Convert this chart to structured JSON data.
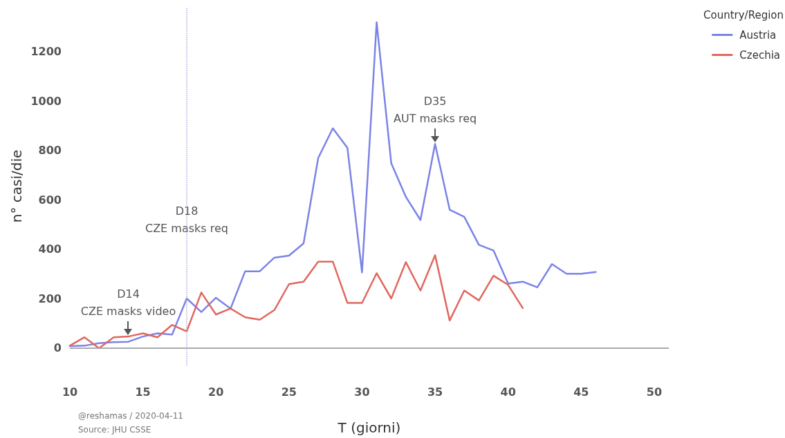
{
  "chart_data": {
    "type": "line",
    "xlabel": "T (giorni)",
    "ylabel": "n° casi/die",
    "legend_title": "Country/Region",
    "legend": "top right",
    "grid": false,
    "marker": "none",
    "line_style": "solid",
    "xlim": [
      10,
      51
    ],
    "xticks": [
      10,
      15,
      20,
      25,
      30,
      35,
      40,
      45,
      50
    ],
    "ylim": [
      -70,
      1380
    ],
    "yticks": [
      0,
      200,
      400,
      600,
      800,
      1000,
      1200
    ],
    "series": [
      {
        "name": "Austria",
        "color": "#7b83e6",
        "x": [
          10,
          11,
          12,
          13,
          14,
          15,
          16,
          17,
          18,
          19,
          20,
          21,
          22,
          23,
          24,
          25,
          26,
          27,
          28,
          29,
          30,
          31,
          32,
          33,
          34,
          35,
          36,
          37,
          38,
          39,
          40,
          41,
          42,
          43,
          44,
          45,
          46
        ],
        "values": [
          8,
          10,
          20,
          24,
          26,
          47,
          60,
          55,
          201,
          146,
          204,
          160,
          311,
          311,
          366,
          374,
          424,
          769,
          889,
          810,
          306,
          1318,
          748,
          612,
          518,
          826,
          560,
          531,
          418,
          395,
          261,
          269,
          246,
          340,
          301,
          301,
          308
        ]
      },
      {
        "name": "Czechia",
        "color": "#e0675e",
        "x": [
          10,
          11,
          12,
          13,
          14,
          15,
          16,
          17,
          18,
          19,
          20,
          21,
          22,
          23,
          24,
          25,
          26,
          27,
          28,
          29,
          30,
          31,
          32,
          33,
          34,
          35,
          36,
          37,
          38,
          39,
          40,
          41
        ],
        "values": [
          10,
          44,
          0,
          44,
          47,
          60,
          44,
          94,
          68,
          225,
          136,
          160,
          125,
          115,
          154,
          259,
          269,
          350,
          350,
          183,
          183,
          303,
          201,
          348,
          233,
          376,
          112,
          233,
          193,
          293,
          256,
          162
        ]
      }
    ],
    "ref_lines": [
      {
        "axis": "x",
        "value": 18,
        "label": "D18\nCZE masks req",
        "color": "#b0a8d8",
        "line_style": "dotted"
      },
      {
        "axis": "y",
        "value": 0,
        "color": "#aaaaaa",
        "line_style": "solid"
      }
    ],
    "annotations": [
      {
        "text": "D14\nCZE masks video",
        "x": 14,
        "y": 47
      },
      {
        "text": "D35\nAUT masks req",
        "x": 35,
        "y": 826
      },
      "@reshamas / 2020-04-11",
      "Source: JHU CSSE"
    ]
  }
}
